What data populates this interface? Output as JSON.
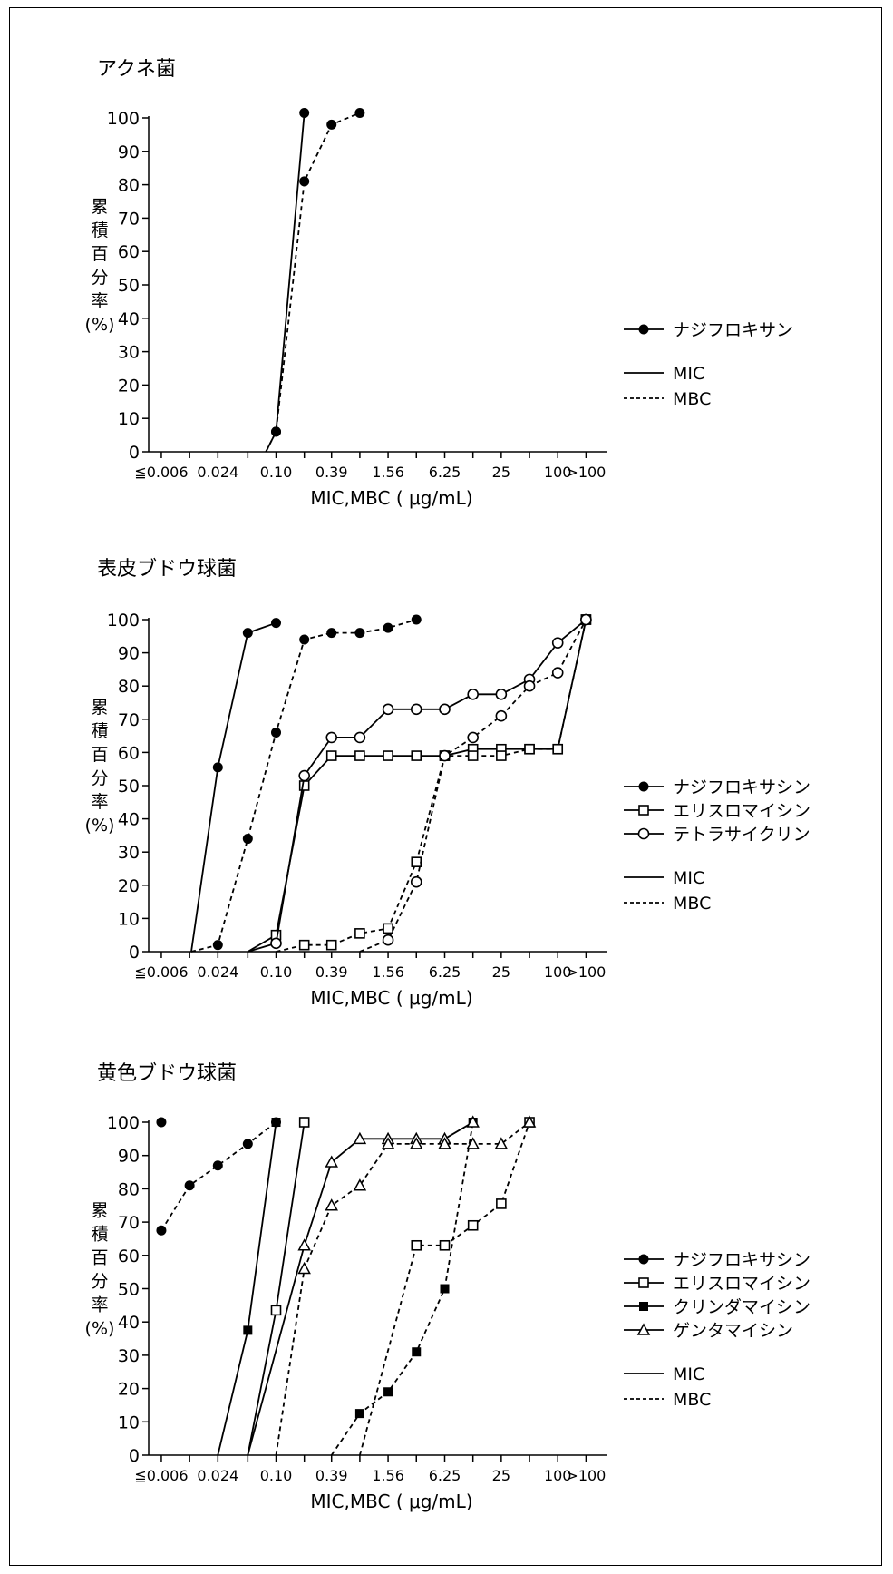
{
  "x_tick_labels": [
    "≦0.006",
    "0.024",
    "0.10",
    "0.39",
    "1.56",
    "6.25",
    "25",
    "100",
    ">100"
  ],
  "x_axis_label": "MIC,MBC ( μg/mL)",
  "y_axis_label": [
    "累",
    "積",
    "百",
    "分",
    "率",
    "(%)"
  ],
  "y_tick_labels": [
    "100",
    "90",
    "80",
    "70",
    "60",
    "50",
    "40",
    "30",
    "20",
    "10",
    "0"
  ],
  "line_styles": {
    "mic": "MIC",
    "mbc": "MBC"
  },
  "chart_data": [
    {
      "type": "line",
      "title": "アクネ菌",
      "xlabel": "MIC,MBC ( μg/mL)",
      "ylabel": "累積百分率(%)",
      "ylim": [
        0,
        100
      ],
      "x_scale": "log2",
      "legend": [
        "ナジフロキサン"
      ],
      "series": [
        {
          "drug": "ナジフロキサン",
          "measure": "MIC",
          "marker": "filled-circle",
          "line": "solid",
          "points": [
            [
              0.078,
              0
            ],
            [
              0.1,
              6
            ],
            [
              0.2,
              101.5
            ]
          ]
        },
        {
          "drug": "ナジフロキサン",
          "measure": "MBC",
          "marker": "filled-circle",
          "line": "dashed",
          "points": [
            [
              0.078,
              0
            ],
            [
              0.1,
              6
            ],
            [
              0.2,
              81
            ],
            [
              0.39,
              98
            ],
            [
              0.78,
              101.5
            ]
          ]
        }
      ]
    },
    {
      "type": "line",
      "title": "表皮ブドウ球菌",
      "xlabel": "MIC,MBC ( μg/mL)",
      "ylabel": "累積百分率(%)",
      "ylim": [
        0,
        100
      ],
      "x_scale": "log2",
      "legend": [
        "ナジフロキサシン",
        "エリスロマイシン",
        "テトラサイクリン"
      ],
      "series": [
        {
          "drug": "ナジフロキサシン",
          "measure": "MIC",
          "marker": "filled-circle",
          "line": "solid",
          "points": [
            [
              0.0125,
              0
            ],
            [
              0.024,
              55.5
            ],
            [
              0.05,
              96
            ],
            [
              0.1,
              99
            ]
          ]
        },
        {
          "drug": "ナジフロキサシン",
          "measure": "MBC",
          "marker": "filled-circle",
          "line": "dashed",
          "points": [
            [
              0.0125,
              0
            ],
            [
              0.024,
              2
            ],
            [
              0.05,
              34
            ],
            [
              0.1,
              66
            ],
            [
              0.2,
              94
            ],
            [
              0.39,
              96
            ],
            [
              0.78,
              96
            ],
            [
              1.56,
              97.5
            ],
            [
              3.12,
              100
            ]
          ]
        },
        {
          "drug": "エリスロマイシン",
          "measure": "MIC",
          "marker": "open-square",
          "line": "solid",
          "points": [
            [
              0.05,
              0
            ],
            [
              0.1,
              5
            ],
            [
              0.2,
              50
            ],
            [
              0.39,
              59
            ],
            [
              0.78,
              59
            ],
            [
              1.56,
              59
            ],
            [
              3.12,
              59
            ],
            [
              6.25,
              59
            ],
            [
              12.5,
              61
            ],
            [
              25,
              61
            ],
            [
              50,
              61
            ],
            [
              100,
              61
            ],
            [
              200,
              100
            ]
          ]
        },
        {
          "drug": "エリスロマイシン",
          "measure": "MBC",
          "marker": "open-square",
          "line": "dashed",
          "points": [
            [
              0.1,
              0
            ],
            [
              0.2,
              2
            ],
            [
              0.39,
              2
            ],
            [
              0.78,
              5.5
            ],
            [
              1.56,
              7
            ],
            [
              3.12,
              27
            ],
            [
              6.25,
              59
            ],
            [
              12.5,
              59
            ],
            [
              25,
              59
            ],
            [
              50,
              61
            ],
            [
              100,
              61
            ],
            [
              200,
              100
            ]
          ]
        },
        {
          "drug": "テトラサイクリン",
          "measure": "MIC",
          "marker": "open-circle",
          "line": "solid",
          "points": [
            [
              0.05,
              0
            ],
            [
              0.1,
              2.5
            ],
            [
              0.2,
              53
            ],
            [
              0.39,
              64.5
            ],
            [
              0.78,
              64.5
            ],
            [
              1.56,
              73
            ],
            [
              3.12,
              73
            ],
            [
              6.25,
              73
            ],
            [
              12.5,
              77.5
            ],
            [
              25,
              77.5
            ],
            [
              50,
              82
            ],
            [
              100,
              93
            ],
            [
              200,
              100
            ]
          ]
        },
        {
          "drug": "テトラサイクリン",
          "measure": "MBC",
          "marker": "open-circle",
          "line": "dashed",
          "points": [
            [
              0.78,
              0
            ],
            [
              1.56,
              3.5
            ],
            [
              3.12,
              21
            ],
            [
              6.25,
              59
            ],
            [
              12.5,
              64.5
            ],
            [
              25,
              71
            ],
            [
              50,
              80
            ],
            [
              100,
              84
            ],
            [
              200,
              100
            ]
          ]
        }
      ]
    },
    {
      "type": "line",
      "title": "黄色ブドウ球菌",
      "xlabel": "MIC,MBC ( μg/mL)",
      "ylabel": "累積百分率(%)",
      "ylim": [
        0,
        100
      ],
      "x_scale": "log2",
      "legend": [
        "ナジフロキサシン",
        "エリスロマイシン",
        "クリンダマイシン",
        "ゲンタマイシン"
      ],
      "series": [
        {
          "drug": "ナジフロキサシン",
          "measure": "MIC",
          "marker": "filled-circle",
          "line": "solid",
          "points": [
            [
              0.006,
              100
            ]
          ]
        },
        {
          "drug": "ナジフロキサシン",
          "measure": "MBC",
          "marker": "filled-circle",
          "line": "dashed",
          "points": [
            [
              0.006,
              67.5
            ],
            [
              0.012,
              81
            ],
            [
              0.024,
              87
            ],
            [
              0.05,
              93.5
            ],
            [
              0.1,
              100
            ]
          ]
        },
        {
          "drug": "エリスロマイシン",
          "measure": "MIC",
          "marker": "open-square",
          "line": "solid",
          "points": [
            [
              0.05,
              0
            ],
            [
              0.1,
              43.5
            ],
            [
              0.2,
              100
            ]
          ]
        },
        {
          "drug": "エリスロマイシン",
          "measure": "MBC",
          "marker": "open-square",
          "line": "dashed",
          "points": [
            [
              0.78,
              0
            ],
            [
              3.12,
              63
            ],
            [
              6.25,
              63
            ],
            [
              12.5,
              69
            ],
            [
              25,
              75.5
            ],
            [
              50,
              100
            ]
          ]
        },
        {
          "drug": "クリンダマイシン",
          "measure": "MIC",
          "marker": "filled-square",
          "line": "solid",
          "points": [
            [
              0.024,
              0
            ],
            [
              0.05,
              37.5
            ],
            [
              0.1,
              100
            ]
          ]
        },
        {
          "drug": "クリンダマイシン",
          "measure": "MBC",
          "marker": "filled-square",
          "line": "dashed",
          "points": [
            [
              0.39,
              0
            ],
            [
              0.78,
              12.5
            ],
            [
              1.56,
              19
            ],
            [
              3.12,
              31
            ],
            [
              6.25,
              50
            ],
            [
              12.5,
              100
            ]
          ]
        },
        {
          "drug": "ゲンタマイシン",
          "measure": "MIC",
          "marker": "open-triangle",
          "line": "solid",
          "points": [
            [
              0.05,
              0
            ],
            [
              0.2,
              63
            ],
            [
              0.39,
              88
            ],
            [
              0.78,
              95
            ],
            [
              1.56,
              95
            ],
            [
              3.12,
              95
            ],
            [
              6.25,
              95
            ],
            [
              12.5,
              100
            ]
          ]
        },
        {
          "drug": "ゲンタマイシン",
          "measure": "MBC",
          "marker": "open-triangle",
          "line": "dashed",
          "points": [
            [
              0.1,
              0
            ],
            [
              0.2,
              56
            ],
            [
              0.39,
              75
            ],
            [
              0.78,
              81
            ],
            [
              1.56,
              93.5
            ],
            [
              3.12,
              93.5
            ],
            [
              6.25,
              93.5
            ],
            [
              12.5,
              93.5
            ],
            [
              25,
              93.5
            ],
            [
              50,
              100
            ]
          ]
        }
      ]
    }
  ]
}
